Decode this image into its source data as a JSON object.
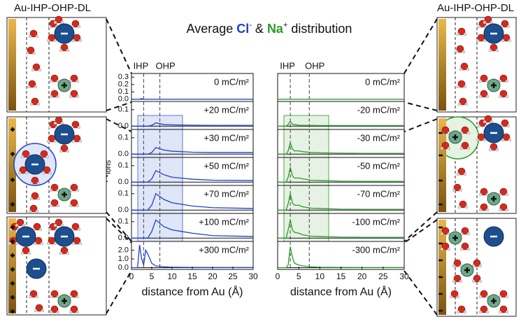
{
  "title": {
    "lead": "Average ",
    "cl": "Cl",
    "cl_sup": "-",
    "amp": " & ",
    "na": "Na",
    "na_sup": "+",
    "tail": " distribution"
  },
  "schematic_labels": [
    "Au-IHP-OHP-DL",
    "Au-IHP-OHP-DL"
  ],
  "y_label": {
    "open": "< N",
    "sub": "ions",
    "close": " >"
  },
  "chart_data": [
    {
      "type": "line",
      "label": "0 mC/m²",
      "color": "#1f3fd0",
      "x": [
        0,
        1.5,
        2,
        2.5,
        3,
        3.5,
        4,
        5,
        6,
        8,
        10,
        15,
        20,
        30
      ],
      "values": [
        0,
        0,
        0,
        0.01,
        0,
        0,
        0,
        0,
        0,
        0,
        0,
        0,
        0,
        0
      ],
      "ylim": [
        -0.03,
        0.35
      ],
      "yticks": [
        {
          "value": 0,
          "label": "0.0"
        },
        {
          "value": 0.1,
          "label": "0.1"
        },
        {
          "value": 0.2,
          "label": "0.2"
        },
        {
          "value": 0.3,
          "label": "0.3"
        }
      ],
      "markers": [
        {
          "label": "IHP",
          "x": 3
        },
        {
          "label": "OHP",
          "x": 7
        }
      ]
    },
    {
      "type": "line",
      "label": "+20 mC/m²",
      "color": "#1f3fd0",
      "x": [
        0,
        1.5,
        2,
        2.5,
        3,
        3.5,
        4,
        5,
        6,
        8,
        10,
        15,
        20,
        30
      ],
      "values": [
        0,
        0,
        0,
        0,
        0,
        0,
        0,
        0.005,
        0.02,
        0.01,
        0.008,
        0.006,
        0.005,
        0.005
      ],
      "ylim": [
        -0.02,
        0.15
      ],
      "yticks": [
        {
          "value": 0,
          "label": "0.0"
        },
        {
          "value": 0.1,
          "label": "0.1"
        }
      ]
    },
    {
      "type": "line",
      "label": "+30 mC/m²",
      "color": "#1f3fd0",
      "x": [
        0,
        1.5,
        2,
        2.5,
        3,
        3.5,
        4,
        5,
        6,
        8,
        10,
        15,
        20,
        30
      ],
      "values": [
        0,
        0,
        0,
        0,
        0,
        0,
        0,
        0.01,
        0.04,
        0.025,
        0.018,
        0.012,
        0.01,
        0.01
      ],
      "ylim": [
        -0.02,
        0.15
      ],
      "yticks": [
        {
          "value": 0,
          "label": "0.0"
        },
        {
          "value": 0.1,
          "label": "0.1"
        }
      ]
    },
    {
      "type": "line",
      "label": "+50 mC/m²",
      "color": "#1f3fd0",
      "x": [
        0,
        1.5,
        2,
        2.5,
        3,
        3.5,
        4,
        5,
        6,
        8,
        10,
        15,
        20,
        30
      ],
      "values": [
        0,
        0,
        0,
        0,
        0,
        0,
        0,
        0.02,
        0.07,
        0.045,
        0.03,
        0.018,
        0.012,
        0.01
      ],
      "ylim": [
        -0.02,
        0.15
      ],
      "yticks": [
        {
          "value": 0,
          "label": "0.0"
        },
        {
          "value": 0.1,
          "label": "0.1"
        }
      ]
    },
    {
      "type": "line",
      "label": "+70 mC/m²",
      "color": "#1f3fd0",
      "x": [
        0,
        1.5,
        2,
        2.5,
        3,
        3.5,
        4,
        5,
        6,
        8,
        10,
        15,
        20,
        30
      ],
      "values": [
        0,
        0,
        0,
        0,
        0,
        0,
        0,
        0.03,
        0.1,
        0.065,
        0.045,
        0.025,
        0.015,
        0.01
      ],
      "ylim": [
        -0.02,
        0.15
      ],
      "yticks": [
        {
          "value": 0,
          "label": "0.0"
        },
        {
          "value": 0.1,
          "label": "0.1"
        }
      ]
    },
    {
      "type": "line",
      "label": "+100 mC/m²",
      "color": "#1f3fd0",
      "x": [
        0,
        1.5,
        2,
        2.5,
        3,
        3.5,
        4,
        5,
        6,
        8,
        10,
        15,
        20,
        30
      ],
      "values": [
        0,
        0,
        0,
        0,
        0,
        0,
        0,
        0.04,
        0.11,
        0.07,
        0.05,
        0.03,
        0.015,
        0.01
      ],
      "ylim": [
        -0.02,
        0.15
      ],
      "yticks": [
        {
          "value": 0,
          "label": "0.0"
        },
        {
          "value": 0.1,
          "label": "0.1"
        }
      ]
    },
    {
      "type": "line",
      "label": "+300 mC/m²",
      "color": "#1f3fd0",
      "x": [
        0,
        1.5,
        2,
        2.5,
        3,
        3.5,
        4,
        5,
        6,
        8,
        10,
        15,
        20,
        30
      ],
      "values": [
        0,
        0,
        2.6,
        1.0,
        0.3,
        2.0,
        1.6,
        0.5,
        0.2,
        0.1,
        0.05,
        0.03,
        0.02,
        0.02
      ],
      "ylim": [
        -0.2,
        3
      ],
      "yticks": [
        {
          "value": 0,
          "label": "0.0"
        },
        {
          "value": 1,
          "label": "1.0"
        },
        {
          "value": 2,
          "label": "2.0"
        }
      ],
      "xticks": [
        0,
        5,
        10,
        15,
        20,
        25,
        30
      ],
      "xlabel": "distance from Au (Å)"
    },
    {
      "type": "line",
      "label": "0 mC/m²",
      "color": "#2a9a2a",
      "x": [
        0,
        1.5,
        2,
        2.5,
        3,
        3.5,
        4,
        5,
        6,
        8,
        10,
        15,
        20,
        30
      ],
      "values": [
        0,
        0,
        0,
        0,
        0,
        0,
        0,
        0,
        0,
        0,
        0,
        0,
        0,
        0
      ],
      "ylim": [
        -0.03,
        0.35
      ],
      "markers": [
        {
          "label": "IHP",
          "x": 3
        },
        {
          "label": "OHP",
          "x": 7.5
        }
      ]
    },
    {
      "type": "line",
      "label": "-20 mC/m²",
      "color": "#2a9a2a",
      "x": [
        0,
        1.5,
        2,
        2.5,
        3,
        3.5,
        4,
        5,
        6,
        8,
        10,
        15,
        20,
        30
      ],
      "values": [
        0,
        0,
        0,
        0.01,
        0.03,
        0.012,
        0.01,
        0.006,
        0.005,
        0.005,
        0.004,
        0.004,
        0.004,
        0.004
      ],
      "ylim": [
        -0.02,
        0.15
      ]
    },
    {
      "type": "line",
      "label": "-30 mC/m²",
      "color": "#2a9a2a",
      "x": [
        0,
        1.5,
        2,
        2.5,
        3,
        3.5,
        4,
        5,
        6,
        8,
        10,
        15,
        20,
        30
      ],
      "values": [
        0,
        0,
        0,
        0.02,
        0.07,
        0.03,
        0.02,
        0.02,
        0.015,
        0.01,
        0.008,
        0.006,
        0.005,
        0.005
      ],
      "ylim": [
        -0.02,
        0.15
      ]
    },
    {
      "type": "line",
      "label": "-50 mC/m²",
      "color": "#2a9a2a",
      "x": [
        0,
        1.5,
        2,
        2.5,
        3,
        3.5,
        4,
        5,
        6,
        8,
        10,
        15,
        20,
        30
      ],
      "values": [
        0,
        0,
        0,
        0.03,
        0.09,
        0.04,
        0.025,
        0.025,
        0.02,
        0.012,
        0.01,
        0.006,
        0.005,
        0.005
      ],
      "ylim": [
        -0.02,
        0.15
      ]
    },
    {
      "type": "line",
      "label": "-70 mC/m²",
      "color": "#2a9a2a",
      "x": [
        0,
        1.5,
        2,
        2.5,
        3,
        3.5,
        4,
        5,
        6,
        8,
        10,
        15,
        20,
        30
      ],
      "values": [
        0,
        0,
        0,
        0.04,
        0.1,
        0.045,
        0.03,
        0.03,
        0.02,
        0.012,
        0.01,
        0.006,
        0.005,
        0.005
      ],
      "ylim": [
        -0.02,
        0.15
      ]
    },
    {
      "type": "line",
      "label": "-100 mC/m²",
      "color": "#2a9a2a",
      "x": [
        0,
        1.5,
        2,
        2.5,
        3,
        3.5,
        4,
        5,
        6,
        8,
        10,
        15,
        20,
        30
      ],
      "values": [
        0,
        0,
        0,
        0.05,
        0.11,
        0.05,
        0.035,
        0.03,
        0.02,
        0.012,
        0.01,
        0.006,
        0.005,
        0.005
      ],
      "ylim": [
        -0.02,
        0.15
      ]
    },
    {
      "type": "line",
      "label": "-300 mC/m²",
      "color": "#2a9a2a",
      "x": [
        0,
        1.5,
        2,
        2.5,
        3,
        3.5,
        4,
        5,
        6,
        8,
        10,
        15,
        20,
        30
      ],
      "values": [
        0,
        0,
        0,
        0.3,
        2.4,
        1.2,
        0.5,
        0.3,
        0.2,
        0.1,
        0.05,
        0.03,
        0.02,
        0.02
      ],
      "ylim": [
        -0.2,
        3
      ],
      "xticks": [
        0,
        5,
        10,
        15,
        20,
        25,
        30
      ],
      "xlabel": "distance from Au (Å)"
    }
  ]
}
